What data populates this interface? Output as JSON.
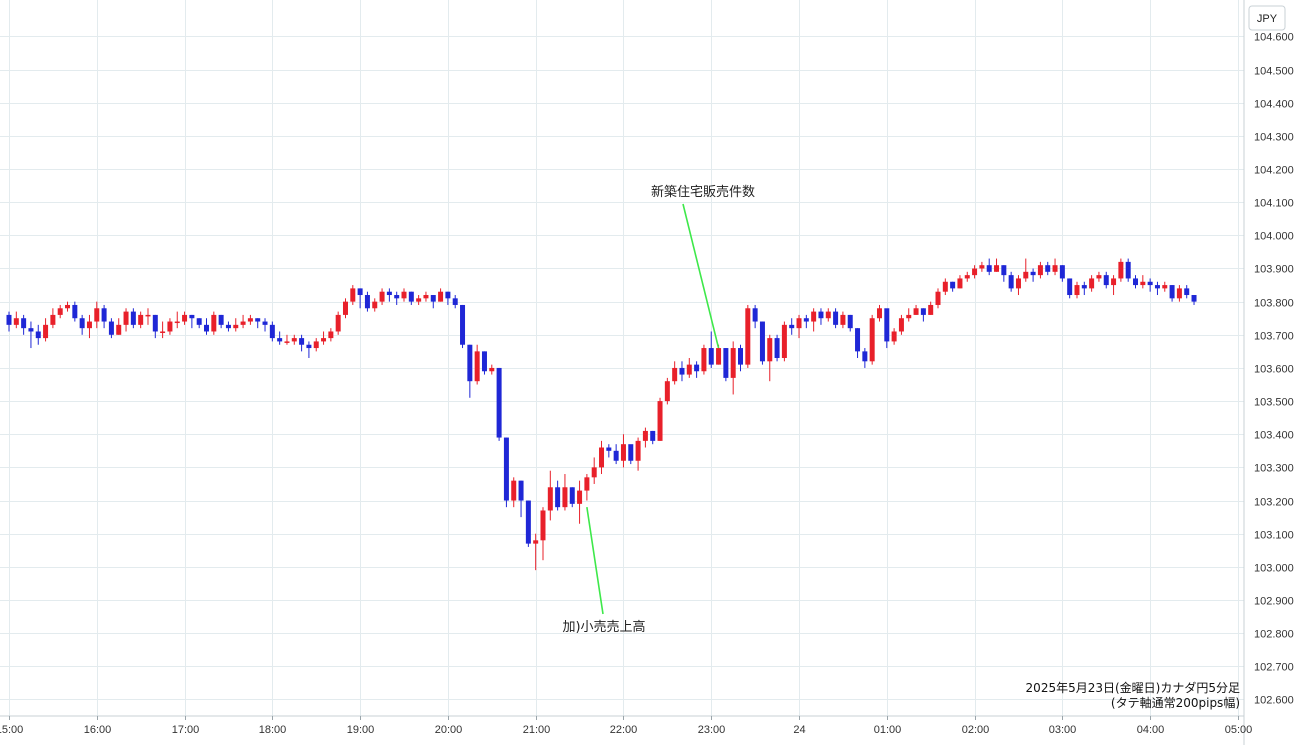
{
  "chart_data": {
    "type": "candlestick",
    "currency": "JPY",
    "ylim": [
      102.55,
      104.71
    ],
    "y_ticks": [
      "104.600",
      "104.500",
      "104.400",
      "104.300",
      "104.200",
      "104.100",
      "104.000",
      "103.900",
      "103.800",
      "103.700",
      "103.600",
      "103.500",
      "103.400",
      "103.300",
      "103.200",
      "103.100",
      "103.000",
      "102.900",
      "102.800",
      "102.700",
      "102.600"
    ],
    "x_ticks": [
      {
        "label": "15:00",
        "t": 0
      },
      {
        "label": "16:00",
        "t": 12
      },
      {
        "label": "17:00",
        "t": 24
      },
      {
        "label": "18:00",
        "t": 36
      },
      {
        "label": "19:00",
        "t": 48
      },
      {
        "label": "20:00",
        "t": 60
      },
      {
        "label": "21:00",
        "t": 72
      },
      {
        "label": "22:00",
        "t": 84
      },
      {
        "label": "23:00",
        "t": 96
      },
      {
        "label": "24",
        "t": 108
      },
      {
        "label": "01:00",
        "t": 120
      },
      {
        "label": "02:00",
        "t": 132
      },
      {
        "label": "03:00",
        "t": 144
      },
      {
        "label": "04:00",
        "t": 156
      },
      {
        "label": "05:00",
        "t": 168
      }
    ],
    "colors": {
      "up": "#e8202a",
      "down": "#1f27d6",
      "annotation_line": "#3ee84a",
      "grid": "#e3ebee"
    },
    "grid": true,
    "annotations": [
      {
        "text": "新築住宅販売件数",
        "t": 97,
        "price": 103.66
      },
      {
        "text": "加)小売売上高",
        "t": 79,
        "price": 103.18
      }
    ],
    "caption": [
      "2025年5月23日(金曜日)カナダ円5分足",
      "(タテ軸通常200pips幅)"
    ],
    "start_open": 103.76,
    "candles": [
      {
        "c": 103.73,
        "h": 103.77,
        "l": 103.71
      },
      {
        "c": 103.75,
        "h": 103.77,
        "l": 103.72
      },
      {
        "c": 103.72,
        "h": 103.76,
        "l": 103.7
      },
      {
        "c": 103.71,
        "h": 103.74,
        "l": 103.66
      },
      {
        "c": 103.69,
        "h": 103.73,
        "l": 103.67
      },
      {
        "c": 103.73,
        "h": 103.75,
        "l": 103.68
      },
      {
        "c": 103.76,
        "h": 103.78,
        "l": 103.72
      },
      {
        "c": 103.78,
        "h": 103.79,
        "l": 103.75
      },
      {
        "c": 103.79,
        "h": 103.8,
        "l": 103.77
      },
      {
        "c": 103.75,
        "h": 103.8,
        "l": 103.74
      },
      {
        "c": 103.72,
        "h": 103.76,
        "l": 103.7
      },
      {
        "c": 103.74,
        "h": 103.76,
        "l": 103.69
      },
      {
        "c": 103.78,
        "h": 103.8,
        "l": 103.72
      },
      {
        "c": 103.74,
        "h": 103.79,
        "l": 103.72
      },
      {
        "c": 103.7,
        "h": 103.75,
        "l": 103.69
      },
      {
        "c": 103.73,
        "h": 103.75,
        "l": 103.7
      },
      {
        "c": 103.77,
        "h": 103.78,
        "l": 103.71
      },
      {
        "c": 103.73,
        "h": 103.78,
        "l": 103.72
      },
      {
        "c": 103.76,
        "h": 103.77,
        "l": 103.72
      },
      {
        "c": 103.76,
        "h": 103.78,
        "l": 103.73
      },
      {
        "c": 103.71,
        "h": 103.76,
        "l": 103.69
      },
      {
        "c": 103.71,
        "h": 103.74,
        "l": 103.69
      },
      {
        "c": 103.74,
        "h": 103.75,
        "l": 103.7
      },
      {
        "c": 103.74,
        "h": 103.77,
        "l": 103.72
      },
      {
        "c": 103.76,
        "h": 103.77,
        "l": 103.73
      },
      {
        "c": 103.75,
        "h": 103.76,
        "l": 103.72
      },
      {
        "c": 103.73,
        "h": 103.75,
        "l": 103.72
      },
      {
        "c": 103.71,
        "h": 103.75,
        "l": 103.7
      },
      {
        "c": 103.76,
        "h": 103.77,
        "l": 103.7
      },
      {
        "c": 103.73,
        "h": 103.76,
        "l": 103.72
      },
      {
        "c": 103.72,
        "h": 103.74,
        "l": 103.71
      },
      {
        "c": 103.73,
        "h": 103.75,
        "l": 103.71
      },
      {
        "c": 103.74,
        "h": 103.76,
        "l": 103.72
      },
      {
        "c": 103.75,
        "h": 103.76,
        "l": 103.73
      },
      {
        "c": 103.74,
        "h": 103.75,
        "l": 103.72
      },
      {
        "c": 103.73,
        "h": 103.75,
        "l": 103.71
      },
      {
        "c": 103.69,
        "h": 103.74,
        "l": 103.68
      },
      {
        "c": 103.68,
        "h": 103.71,
        "l": 103.67
      },
      {
        "c": 103.68,
        "h": 103.7,
        "l": 103.67
      },
      {
        "c": 103.69,
        "h": 103.7,
        "l": 103.67
      },
      {
        "c": 103.67,
        "h": 103.7,
        "l": 103.65
      },
      {
        "c": 103.66,
        "h": 103.68,
        "l": 103.63
      },
      {
        "c": 103.68,
        "h": 103.69,
        "l": 103.65
      },
      {
        "c": 103.69,
        "h": 103.71,
        "l": 103.67
      },
      {
        "c": 103.71,
        "h": 103.72,
        "l": 103.68
      },
      {
        "c": 103.76,
        "h": 103.77,
        "l": 103.7
      },
      {
        "c": 103.8,
        "h": 103.81,
        "l": 103.75
      },
      {
        "c": 103.84,
        "h": 103.85,
        "l": 103.79
      },
      {
        "c": 103.82,
        "h": 103.84,
        "l": 103.78
      },
      {
        "c": 103.78,
        "h": 103.83,
        "l": 103.77
      },
      {
        "c": 103.8,
        "h": 103.81,
        "l": 103.77
      },
      {
        "c": 103.83,
        "h": 103.84,
        "l": 103.79
      },
      {
        "c": 103.82,
        "h": 103.84,
        "l": 103.8
      },
      {
        "c": 103.81,
        "h": 103.83,
        "l": 103.79
      },
      {
        "c": 103.83,
        "h": 103.84,
        "l": 103.8
      },
      {
        "c": 103.8,
        "h": 103.83,
        "l": 103.79
      },
      {
        "c": 103.81,
        "h": 103.82,
        "l": 103.79
      },
      {
        "c": 103.82,
        "h": 103.83,
        "l": 103.8
      },
      {
        "c": 103.8,
        "h": 103.82,
        "l": 103.78
      },
      {
        "c": 103.83,
        "h": 103.84,
        "l": 103.8
      },
      {
        "c": 103.81,
        "h": 103.83,
        "l": 103.79
      },
      {
        "c": 103.79,
        "h": 103.82,
        "l": 103.78
      },
      {
        "c": 103.67,
        "h": 103.79,
        "l": 103.66
      },
      {
        "c": 103.56,
        "h": 103.67,
        "l": 103.51
      },
      {
        "c": 103.65,
        "h": 103.67,
        "l": 103.55
      },
      {
        "c": 103.59,
        "h": 103.65,
        "l": 103.58
      },
      {
        "c": 103.6,
        "h": 103.61,
        "l": 103.58
      },
      {
        "c": 103.39,
        "h": 103.6,
        "l": 103.38
      },
      {
        "c": 103.2,
        "h": 103.39,
        "l": 103.18
      },
      {
        "c": 103.26,
        "h": 103.27,
        "l": 103.18
      },
      {
        "c": 103.2,
        "h": 103.26,
        "l": 103.15
      },
      {
        "c": 103.07,
        "h": 103.2,
        "l": 103.06
      },
      {
        "c": 103.08,
        "h": 103.1,
        "l": 102.99
      },
      {
        "c": 103.17,
        "h": 103.18,
        "l": 103.02
      },
      {
        "c": 103.24,
        "h": 103.29,
        "l": 103.14
      },
      {
        "c": 103.18,
        "h": 103.26,
        "l": 103.17
      },
      {
        "c": 103.24,
        "h": 103.28,
        "l": 103.17
      },
      {
        "c": 103.19,
        "h": 103.24,
        "l": 103.18
      },
      {
        "c": 103.23,
        "h": 103.26,
        "l": 103.13
      },
      {
        "c": 103.27,
        "h": 103.28,
        "l": 103.2
      },
      {
        "c": 103.3,
        "h": 103.33,
        "l": 103.25
      },
      {
        "c": 103.36,
        "h": 103.38,
        "l": 103.28
      },
      {
        "c": 103.35,
        "h": 103.37,
        "l": 103.33
      },
      {
        "c": 103.32,
        "h": 103.37,
        "l": 103.31
      },
      {
        "c": 103.37,
        "h": 103.4,
        "l": 103.3
      },
      {
        "c": 103.32,
        "h": 103.36,
        "l": 103.31
      },
      {
        "c": 103.38,
        "h": 103.39,
        "l": 103.29
      },
      {
        "c": 103.41,
        "h": 103.42,
        "l": 103.36
      },
      {
        "c": 103.38,
        "h": 103.41,
        "l": 103.37
      },
      {
        "c": 103.5,
        "h": 103.51,
        "l": 103.38
      },
      {
        "c": 103.56,
        "h": 103.57,
        "l": 103.49
      },
      {
        "c": 103.6,
        "h": 103.62,
        "l": 103.55
      },
      {
        "c": 103.58,
        "h": 103.62,
        "l": 103.56
      },
      {
        "c": 103.61,
        "h": 103.63,
        "l": 103.57
      },
      {
        "c": 103.59,
        "h": 103.62,
        "l": 103.57
      },
      {
        "c": 103.66,
        "h": 103.67,
        "l": 103.58
      },
      {
        "c": 103.61,
        "h": 103.71,
        "l": 103.6
      },
      {
        "c": 103.66,
        "h": 103.67,
        "l": 103.61
      },
      {
        "c": 103.57,
        "h": 103.66,
        "l": 103.56
      },
      {
        "c": 103.66,
        "h": 103.68,
        "l": 103.52
      },
      {
        "c": 103.61,
        "h": 103.67,
        "l": 103.59
      },
      {
        "c": 103.78,
        "h": 103.79,
        "l": 103.6
      },
      {
        "c": 103.74,
        "h": 103.79,
        "l": 103.72
      },
      {
        "c": 103.62,
        "h": 103.74,
        "l": 103.61
      },
      {
        "c": 103.69,
        "h": 103.7,
        "l": 103.56
      },
      {
        "c": 103.63,
        "h": 103.7,
        "l": 103.62
      },
      {
        "c": 103.73,
        "h": 103.74,
        "l": 103.62
      },
      {
        "c": 103.72,
        "h": 103.75,
        "l": 103.7
      },
      {
        "c": 103.75,
        "h": 103.76,
        "l": 103.69
      },
      {
        "c": 103.74,
        "h": 103.76,
        "l": 103.72
      },
      {
        "c": 103.77,
        "h": 103.78,
        "l": 103.71
      },
      {
        "c": 103.75,
        "h": 103.78,
        "l": 103.73
      },
      {
        "c": 103.77,
        "h": 103.78,
        "l": 103.74
      },
      {
        "c": 103.73,
        "h": 103.78,
        "l": 103.72
      },
      {
        "c": 103.76,
        "h": 103.77,
        "l": 103.72
      },
      {
        "c": 103.72,
        "h": 103.76,
        "l": 103.71
      },
      {
        "c": 103.65,
        "h": 103.72,
        "l": 103.63
      },
      {
        "c": 103.62,
        "h": 103.66,
        "l": 103.6
      },
      {
        "c": 103.75,
        "h": 103.76,
        "l": 103.61
      },
      {
        "c": 103.78,
        "h": 103.79,
        "l": 103.74
      },
      {
        "c": 103.68,
        "h": 103.77,
        "l": 103.66
      },
      {
        "c": 103.71,
        "h": 103.72,
        "l": 103.67
      },
      {
        "c": 103.75,
        "h": 103.76,
        "l": 103.7
      },
      {
        "c": 103.76,
        "h": 103.78,
        "l": 103.74
      },
      {
        "c": 103.78,
        "h": 103.79,
        "l": 103.76
      },
      {
        "c": 103.76,
        "h": 103.78,
        "l": 103.74
      },
      {
        "c": 103.79,
        "h": 103.8,
        "l": 103.76
      },
      {
        "c": 103.83,
        "h": 103.84,
        "l": 103.78
      },
      {
        "c": 103.86,
        "h": 103.87,
        "l": 103.82
      },
      {
        "c": 103.84,
        "h": 103.86,
        "l": 103.83
      },
      {
        "c": 103.87,
        "h": 103.88,
        "l": 103.84
      },
      {
        "c": 103.88,
        "h": 103.89,
        "l": 103.86
      },
      {
        "c": 103.9,
        "h": 103.91,
        "l": 103.87
      },
      {
        "c": 103.91,
        "h": 103.92,
        "l": 103.89
      },
      {
        "c": 103.89,
        "h": 103.93,
        "l": 103.88
      },
      {
        "c": 103.91,
        "h": 103.93,
        "l": 103.89
      },
      {
        "c": 103.88,
        "h": 103.91,
        "l": 103.86
      },
      {
        "c": 103.84,
        "h": 103.89,
        "l": 103.83
      },
      {
        "c": 103.87,
        "h": 103.88,
        "l": 103.82
      },
      {
        "c": 103.89,
        "h": 103.93,
        "l": 103.86
      },
      {
        "c": 103.88,
        "h": 103.9,
        "l": 103.86
      },
      {
        "c": 103.91,
        "h": 103.92,
        "l": 103.87
      },
      {
        "c": 103.89,
        "h": 103.92,
        "l": 103.88
      },
      {
        "c": 103.91,
        "h": 103.93,
        "l": 103.88
      },
      {
        "c": 103.87,
        "h": 103.91,
        "l": 103.86
      },
      {
        "c": 103.82,
        "h": 103.87,
        "l": 103.81
      },
      {
        "c": 103.85,
        "h": 103.86,
        "l": 103.81
      },
      {
        "c": 103.84,
        "h": 103.86,
        "l": 103.82
      },
      {
        "c": 103.87,
        "h": 103.88,
        "l": 103.83
      },
      {
        "c": 103.88,
        "h": 103.89,
        "l": 103.86
      },
      {
        "c": 103.85,
        "h": 103.89,
        "l": 103.84
      },
      {
        "c": 103.87,
        "h": 103.88,
        "l": 103.82
      },
      {
        "c": 103.92,
        "h": 103.93,
        "l": 103.86
      },
      {
        "c": 103.87,
        "h": 103.93,
        "l": 103.86
      },
      {
        "c": 103.85,
        "h": 103.88,
        "l": 103.84
      },
      {
        "c": 103.86,
        "h": 103.88,
        "l": 103.84
      },
      {
        "c": 103.85,
        "h": 103.87,
        "l": 103.83
      },
      {
        "c": 103.84,
        "h": 103.86,
        "l": 103.82
      },
      {
        "c": 103.85,
        "h": 103.86,
        "l": 103.83
      },
      {
        "c": 103.81,
        "h": 103.85,
        "l": 103.8
      },
      {
        "c": 103.84,
        "h": 103.85,
        "l": 103.8
      },
      {
        "c": 103.82,
        "h": 103.85,
        "l": 103.81
      },
      {
        "c": 103.8,
        "h": 103.82,
        "l": 103.79
      }
    ]
  }
}
